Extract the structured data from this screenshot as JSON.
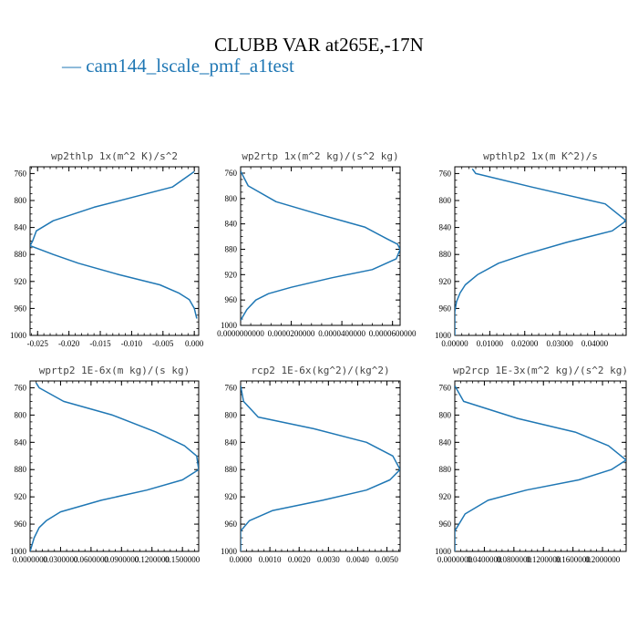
{
  "figure": {
    "title": "CLUBB VAR at265E,-17N",
    "legend_entry": "cam144_lscale_pmf_a1test",
    "line_color": "#1f77b4"
  },
  "chart_data": [
    {
      "type": "line",
      "title": "wp2thlp  1x(m^2 K)/s^2",
      "xlim": [
        -0.0262,
        0.0007
      ],
      "ylim": [
        1000,
        750
      ],
      "y_ticks": [
        760,
        800,
        840,
        880,
        920,
        960,
        1000
      ],
      "y_tick_labels": [
        "760",
        "800",
        "840",
        "880",
        "920",
        "960",
        "1000"
      ],
      "x_ticks": [
        -0.025,
        -0.02,
        -0.015,
        -0.01,
        -0.005,
        0.0
      ],
      "x_tick_labels": [
        "-0.025",
        "-0.020",
        "-0.015",
        "-0.010",
        "-0.005",
        "0.000"
      ],
      "series": [
        {
          "x": [
            0.0,
            -0.0035,
            -0.016,
            -0.0225,
            -0.0252,
            -0.0258,
            -0.0262,
            -0.0225,
            -0.0185,
            -0.012,
            -0.0055,
            -0.0025,
            -0.0008,
            0.0,
            0.0004
          ],
          "y": [
            757,
            780,
            810,
            830,
            845,
            860,
            867,
            880,
            893,
            910,
            925,
            937,
            947,
            960,
            975
          ]
        }
      ]
    },
    {
      "type": "line",
      "title": "wp2rtp  1x(m^2 kg)/(s^2 kg)",
      "xlim": [
        0.0,
        6.3e-05
      ],
      "ylim": [
        1000,
        750
      ],
      "y_ticks": [
        760,
        800,
        840,
        880,
        920,
        960,
        1000
      ],
      "y_tick_labels": [
        "760",
        "800",
        "840",
        "880",
        "920",
        "960",
        "1000"
      ],
      "x_ticks": [
        0.0,
        2e-05,
        4e-05,
        6e-05
      ],
      "x_tick_labels": [
        "0.0000000000",
        "0.0000200000",
        "0.0000400000",
        "0.0000600000"
      ],
      "series": [
        {
          "x": [
            0.0,
            3e-06,
            1.4e-05,
            3.1e-05,
            4.9e-05,
            5.8e-05,
            6.2e-05,
            6.3e-05,
            6.15e-05,
            5.2e-05,
            3.6e-05,
            2e-05,
            1.1e-05,
            6e-06,
            2.5e-06,
            0.0
          ],
          "y": [
            757,
            780,
            805,
            825,
            845,
            864,
            872,
            880,
            895,
            912,
            925,
            940,
            950,
            960,
            975,
            992
          ]
        }
      ]
    },
    {
      "type": "line",
      "title": "wpthlp2  1x(m K^2)/s",
      "xlim": [
        0.0,
        0.049
      ],
      "ylim": [
        1000,
        750
      ],
      "y_ticks": [
        760,
        800,
        840,
        880,
        920,
        960,
        1000
      ],
      "y_tick_labels": [
        "760",
        "800",
        "840",
        "880",
        "920",
        "960",
        "1000"
      ],
      "x_ticks": [
        0.0,
        0.01,
        0.02,
        0.03,
        0.04
      ],
      "x_tick_labels": [
        "0.00000",
        "0.01000",
        "0.02000",
        "0.03000",
        "0.04000"
      ],
      "series": [
        {
          "x": [
            0.005,
            0.006,
            0.022,
            0.043,
            0.049,
            0.045,
            0.032,
            0.02,
            0.0125,
            0.0065,
            0.003,
            0.0015,
            0.0005,
            0.0,
            0.0
          ],
          "y": [
            753,
            760,
            780,
            805,
            830,
            845,
            862,
            880,
            893,
            910,
            925,
            937,
            950,
            965,
            1000
          ]
        }
      ]
    },
    {
      "type": "line",
      "title": "wprtp2  1E-6x(m kg)/(s kg)",
      "xlim": [
        0.0,
        0.000166
      ],
      "ylim": [
        1000,
        750
      ],
      "y_ticks": [
        760,
        800,
        840,
        880,
        920,
        960,
        1000
      ],
      "y_tick_labels": [
        "760",
        "800",
        "840",
        "880",
        "920",
        "960",
        "1000"
      ],
      "x_ticks": [
        0.0,
        3e-05,
        6e-05,
        9e-05,
        0.00012,
        0.00015
      ],
      "x_tick_labels": [
        "0.0000000",
        "0.0300000",
        "0.0600000",
        "0.0900000",
        "0.1200000",
        "0.1500000"
      ],
      "series": [
        {
          "x": [
            6e-06,
            9e-06,
            3.3e-05,
            8.1e-05,
            0.000124,
            0.000152,
            0.000164,
            0.000166,
            0.00015,
            0.000115,
            7e-05,
            3e-05,
            1.6e-05,
            9e-06,
            4e-06,
            0.0
          ],
          "y": [
            753,
            760,
            780,
            800,
            825,
            845,
            860,
            880,
            895,
            910,
            925,
            942,
            955,
            965,
            980,
            1000
          ]
        }
      ]
    },
    {
      "type": "line",
      "title": "rcp2  1E-6x(kg^2)/(kg^2)",
      "xlim": [
        0.0,
        0.00545
      ],
      "ylim": [
        1000,
        750
      ],
      "y_ticks": [
        760,
        800,
        840,
        880,
        920,
        960,
        1000
      ],
      "y_tick_labels": [
        "760",
        "800",
        "840",
        "880",
        "920",
        "960",
        "1000"
      ],
      "x_ticks": [
        0.0,
        0.001,
        0.002,
        0.003,
        0.004,
        0.005
      ],
      "x_tick_labels": [
        "0.0000",
        "0.0010",
        "0.0020",
        "0.0030",
        "0.0040",
        "0.0050"
      ],
      "series": [
        {
          "x": [
            0.0,
            0.0001,
            0.0006,
            0.0025,
            0.0043,
            0.0052,
            0.00545,
            0.0051,
            0.0043,
            0.0028,
            0.0011,
            0.0003,
            0.0,
            0.0
          ],
          "y": [
            757,
            780,
            803,
            820,
            840,
            860,
            880,
            895,
            910,
            925,
            940,
            955,
            970,
            1000
          ]
        }
      ]
    },
    {
      "type": "line",
      "title": "wp2rcp  1E-3x(m^2 kg)/(s^2 kg)",
      "xlim": [
        0.0,
        0.000232
      ],
      "ylim": [
        1000,
        750
      ],
      "y_ticks": [
        760,
        800,
        840,
        880,
        920,
        960,
        1000
      ],
      "y_tick_labels": [
        "760",
        "800",
        "840",
        "880",
        "920",
        "960",
        "1000"
      ],
      "x_ticks": [
        0.0,
        4e-05,
        8e-05,
        0.00012,
        0.00016,
        0.0002
      ],
      "x_tick_labels": [
        "0.0000000",
        "0.0400000",
        "0.0800000",
        "0.1200000",
        "0.1600000",
        "0.2000000"
      ],
      "series": [
        {
          "x": [
            0.0,
            1.2e-05,
            8.5e-05,
            0.000163,
            0.000208,
            0.000232,
            0.000212,
            0.000168,
            9.7e-05,
            4.5e-05,
            1.4e-05,
            0.0,
            0.0
          ],
          "y": [
            757,
            780,
            805,
            825,
            845,
            866,
            880,
            895,
            910,
            925,
            945,
            970,
            1000
          ]
        }
      ]
    }
  ]
}
